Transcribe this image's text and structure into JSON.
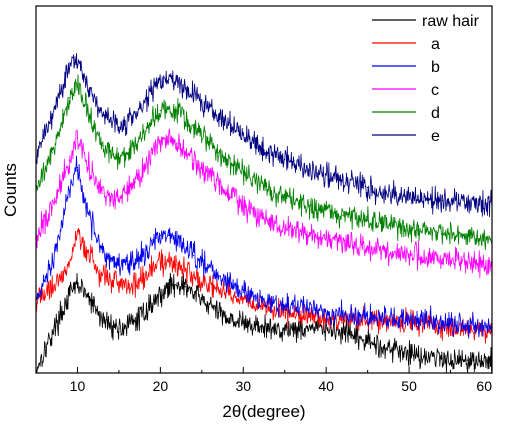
{
  "chart_data": {
    "type": "line",
    "title": "",
    "xlabel": "2θ(degree)",
    "ylabel": "Counts",
    "xlim": [
      5,
      60
    ],
    "ylim": [
      0,
      1
    ],
    "x_ticks": [
      10,
      20,
      30,
      40,
      50,
      60
    ],
    "y_ticks_shown": false,
    "grid": false,
    "legend_position": "top-right",
    "series": [
      {
        "name": "raw hair",
        "color": "#000000",
        "x": [
          5,
          7,
          9,
          10,
          11,
          13,
          15,
          17,
          19,
          21,
          22,
          23,
          25,
          27,
          30,
          33,
          36,
          39,
          42,
          45,
          48,
          51,
          54,
          57,
          60
        ],
        "y": [
          0.01,
          0.11,
          0.21,
          0.245,
          0.215,
          0.145,
          0.12,
          0.14,
          0.19,
          0.235,
          0.245,
          0.235,
          0.2,
          0.165,
          0.135,
          0.12,
          0.12,
          0.125,
          0.11,
          0.085,
          0.065,
          0.05,
          0.04,
          0.035,
          0.03
        ]
      },
      {
        "name": "a",
        "color": "#ff0000",
        "x": [
          5,
          7,
          9,
          10,
          11,
          13,
          15,
          17,
          19,
          20,
          21,
          22,
          24,
          27,
          30,
          33,
          36,
          39,
          42,
          45,
          48,
          51,
          54,
          57,
          60
        ],
        "y": [
          0.2,
          0.23,
          0.3,
          0.385,
          0.33,
          0.265,
          0.245,
          0.245,
          0.28,
          0.3,
          0.305,
          0.295,
          0.265,
          0.23,
          0.2,
          0.175,
          0.16,
          0.15,
          0.145,
          0.145,
          0.14,
          0.135,
          0.13,
          0.12,
          0.115
        ]
      },
      {
        "name": "b",
        "color": "#0000ee",
        "x": [
          5,
          7,
          9,
          10,
          11,
          13,
          15,
          17,
          19,
          20,
          21,
          22,
          24,
          27,
          30,
          33,
          36,
          39,
          42,
          45,
          48,
          51,
          54,
          57,
          60
        ],
        "y": [
          0.2,
          0.3,
          0.5,
          0.56,
          0.45,
          0.33,
          0.295,
          0.31,
          0.35,
          0.375,
          0.375,
          0.365,
          0.32,
          0.265,
          0.22,
          0.195,
          0.18,
          0.17,
          0.16,
          0.155,
          0.15,
          0.145,
          0.14,
          0.13,
          0.125
        ]
      },
      {
        "name": "c",
        "color": "#ff00ff",
        "x": [
          5,
          7,
          9,
          10,
          11,
          13,
          15,
          17,
          19,
          20,
          21,
          22,
          24,
          27,
          30,
          33,
          36,
          39,
          42,
          45,
          48,
          51,
          54,
          57,
          60
        ],
        "y": [
          0.37,
          0.45,
          0.58,
          0.64,
          0.58,
          0.49,
          0.47,
          0.52,
          0.6,
          0.62,
          0.63,
          0.625,
          0.58,
          0.515,
          0.455,
          0.415,
          0.39,
          0.37,
          0.355,
          0.34,
          0.33,
          0.32,
          0.31,
          0.3,
          0.29
        ]
      },
      {
        "name": "d",
        "color": "#008000",
        "x": [
          5,
          7,
          9,
          10,
          11,
          13,
          15,
          17,
          19,
          20,
          21,
          22,
          24,
          27,
          30,
          33,
          36,
          39,
          42,
          45,
          48,
          51,
          54,
          57,
          60
        ],
        "y": [
          0.5,
          0.6,
          0.75,
          0.78,
          0.73,
          0.62,
          0.58,
          0.62,
          0.69,
          0.715,
          0.72,
          0.715,
          0.67,
          0.6,
          0.545,
          0.5,
          0.47,
          0.445,
          0.43,
          0.415,
          0.4,
          0.39,
          0.38,
          0.37,
          0.365
        ]
      },
      {
        "name": "e",
        "color": "#000080",
        "x": [
          5,
          7,
          9,
          10,
          11,
          13,
          15,
          17,
          19,
          20,
          21,
          22,
          24,
          27,
          30,
          33,
          36,
          39,
          42,
          45,
          48,
          51,
          54,
          57,
          60
        ],
        "y": [
          0.59,
          0.7,
          0.83,
          0.84,
          0.8,
          0.7,
          0.67,
          0.705,
          0.77,
          0.795,
          0.8,
          0.795,
          0.76,
          0.7,
          0.65,
          0.6,
          0.575,
          0.545,
          0.525,
          0.505,
          0.49,
          0.48,
          0.47,
          0.465,
          0.46
        ]
      }
    ]
  }
}
